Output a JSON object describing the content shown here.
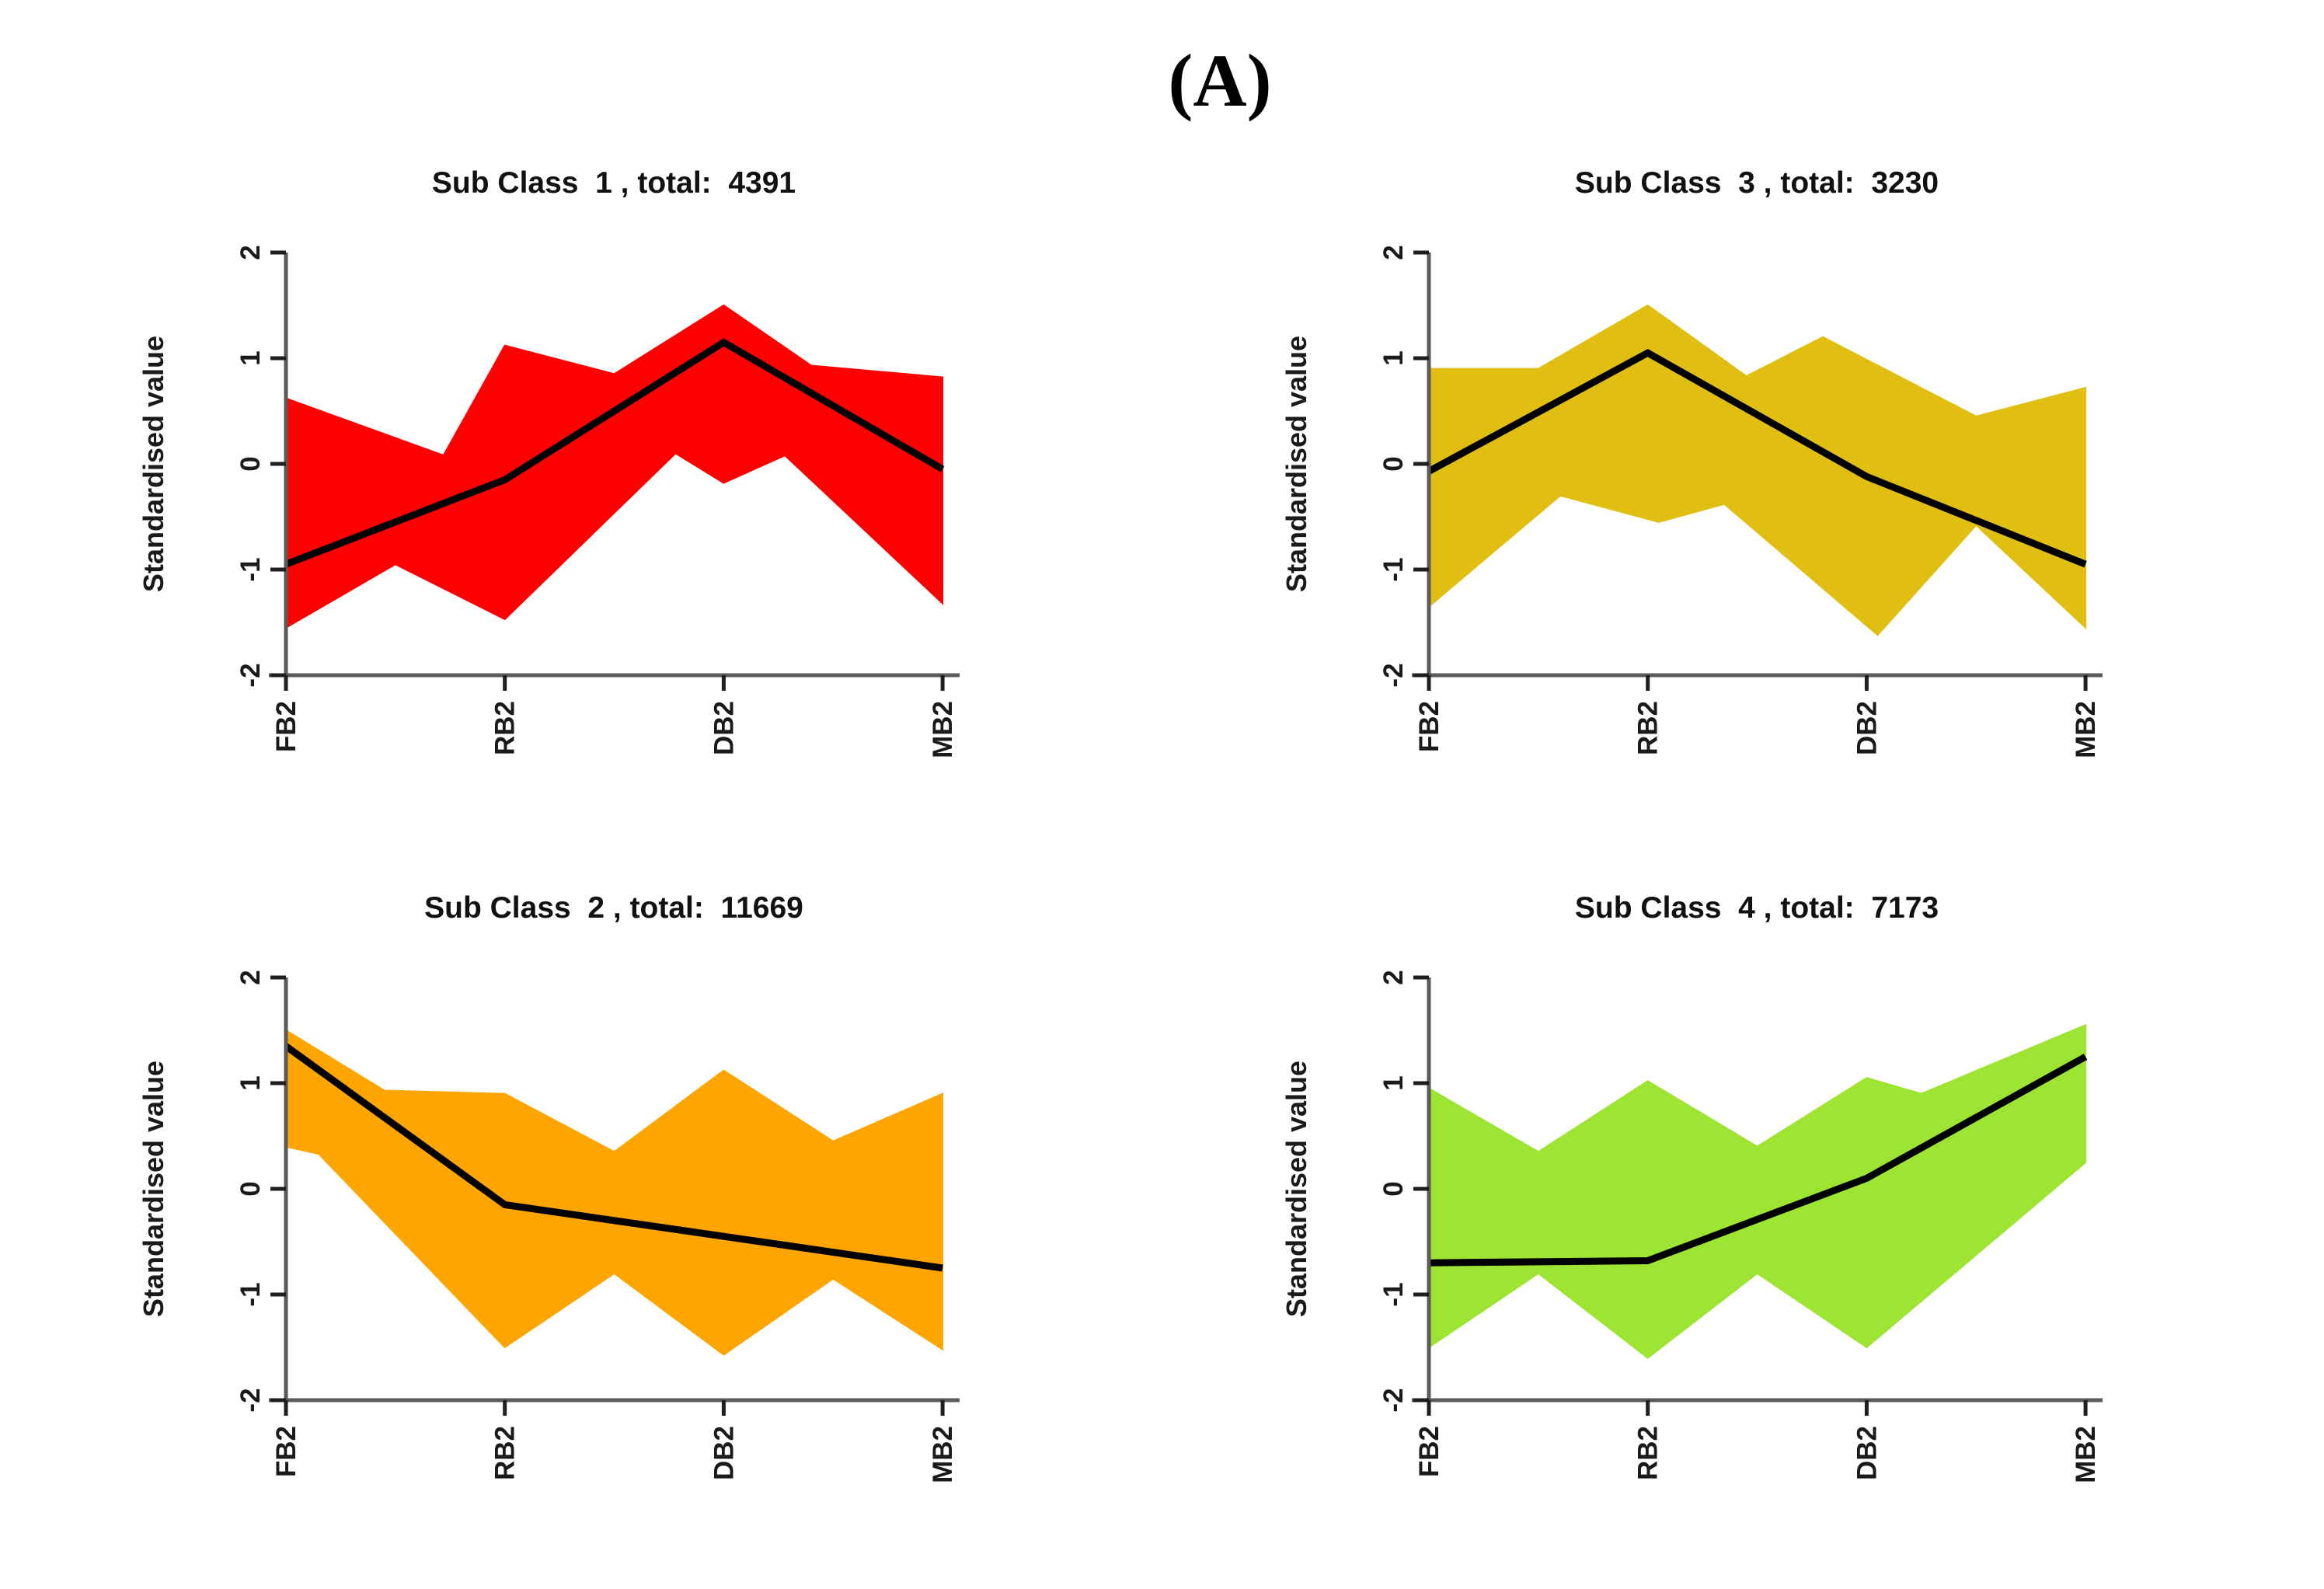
{
  "figure_label": "(A)",
  "style_colors": {
    "axis_line": "#5a5a5a",
    "tick": "#1f1f1f",
    "text": "#1a1a1a",
    "mean_line": "#000000"
  },
  "chart_data": [
    {
      "type": "area",
      "position": "top-left",
      "title": "Sub Class  1 , total:  4391",
      "subclass": 1,
      "total": 4391,
      "color": "#fe0000",
      "categories": [
        "FB2",
        "RB2",
        "DB2",
        "MB2"
      ],
      "x_numeric": [
        1,
        2,
        3,
        4
      ],
      "ylabel": "Standardised value",
      "ylim": [
        -2,
        2
      ],
      "yticks": [
        -2,
        -1,
        0,
        1,
        2
      ],
      "grid": false,
      "mean_line": {
        "name": "cluster mean",
        "color": "#000000",
        "values": [
          -0.95,
          -0.15,
          1.15,
          -0.05
        ]
      },
      "band_upper": [
        [
          1,
          0.62
        ],
        [
          1.72,
          0.08
        ],
        [
          2,
          1.12
        ],
        [
          2.5,
          0.85
        ],
        [
          3,
          1.5
        ],
        [
          3.4,
          0.93
        ],
        [
          4,
          0.82
        ]
      ],
      "band_lower": [
        [
          1,
          -1.55
        ],
        [
          1.5,
          -0.95
        ],
        [
          2,
          -1.47
        ],
        [
          2.78,
          0.1
        ],
        [
          3,
          -0.18
        ],
        [
          3.28,
          0.08
        ],
        [
          4,
          -1.32
        ]
      ]
    },
    {
      "type": "area",
      "position": "top-right",
      "title": "Sub Class  3 , total:  3230",
      "subclass": 3,
      "total": 3230,
      "color": "#e0be12",
      "categories": [
        "FB2",
        "RB2",
        "DB2",
        "MB2"
      ],
      "x_numeric": [
        1,
        2,
        3,
        4
      ],
      "ylabel": "Standardised value",
      "ylim": [
        -2,
        2
      ],
      "yticks": [
        -2,
        -1,
        0,
        1,
        2
      ],
      "grid": false,
      "mean_line": {
        "name": "cluster mean",
        "color": "#000000",
        "values": [
          -0.07,
          1.05,
          -0.12,
          -0.95
        ]
      },
      "band_upper": [
        [
          1,
          0.9
        ],
        [
          1.5,
          0.9
        ],
        [
          2,
          1.5
        ],
        [
          2.45,
          0.83
        ],
        [
          2.8,
          1.2
        ],
        [
          3.5,
          0.45
        ],
        [
          4,
          0.72
        ]
      ],
      "band_lower": [
        [
          1,
          -1.35
        ],
        [
          1.6,
          -0.3
        ],
        [
          2.05,
          -0.55
        ],
        [
          2.35,
          -0.38
        ],
        [
          3.05,
          -1.62
        ],
        [
          3.5,
          -0.58
        ],
        [
          4,
          -1.55
        ]
      ]
    },
    {
      "type": "area",
      "position": "bottom-left",
      "title": "Sub Class  2 , total:  11669",
      "subclass": 2,
      "total": 11669,
      "color": "#ffa500",
      "categories": [
        "FB2",
        "RB2",
        "DB2",
        "MB2"
      ],
      "x_numeric": [
        1,
        2,
        3,
        4
      ],
      "ylabel": "Standardised value",
      "ylim": [
        -2,
        2
      ],
      "yticks": [
        -2,
        -1,
        0,
        1,
        2
      ],
      "grid": false,
      "mean_line": {
        "name": "cluster mean",
        "color": "#000000",
        "values": [
          1.35,
          -0.15,
          -0.45,
          -0.75
        ]
      },
      "band_upper": [
        [
          1,
          1.5
        ],
        [
          1.45,
          0.93
        ],
        [
          2,
          0.9
        ],
        [
          2.5,
          0.35
        ],
        [
          3,
          1.12
        ],
        [
          3.5,
          0.45
        ],
        [
          4,
          0.9
        ]
      ],
      "band_lower": [
        [
          1,
          0.4
        ],
        [
          1.15,
          0.33
        ],
        [
          2,
          -1.5
        ],
        [
          2.5,
          -0.8
        ],
        [
          3,
          -1.57
        ],
        [
          3.5,
          -0.85
        ],
        [
          4,
          -1.52
        ]
      ]
    },
    {
      "type": "area",
      "position": "bottom-right",
      "title": "Sub Class  4 , total:  7173",
      "subclass": 4,
      "total": 7173,
      "color": "#9de433",
      "categories": [
        "FB2",
        "RB2",
        "DB2",
        "MB2"
      ],
      "x_numeric": [
        1,
        2,
        3,
        4
      ],
      "ylabel": "Standardised value",
      "ylim": [
        -2,
        2
      ],
      "yticks": [
        -2,
        -1,
        0,
        1,
        2
      ],
      "grid": false,
      "mean_line": {
        "name": "cluster mean",
        "color": "#000000",
        "values": [
          -0.7,
          -0.68,
          0.1,
          1.25
        ]
      },
      "band_upper": [
        [
          1,
          0.95
        ],
        [
          1.5,
          0.35
        ],
        [
          2,
          1.02
        ],
        [
          2.5,
          0.4
        ],
        [
          3,
          1.05
        ],
        [
          3.25,
          0.9
        ],
        [
          4,
          1.55
        ]
      ],
      "band_lower": [
        [
          1,
          -1.5
        ],
        [
          1.5,
          -0.8
        ],
        [
          2,
          -1.6
        ],
        [
          2.5,
          -0.8
        ],
        [
          3,
          -1.5
        ],
        [
          4,
          0.25
        ]
      ]
    }
  ]
}
